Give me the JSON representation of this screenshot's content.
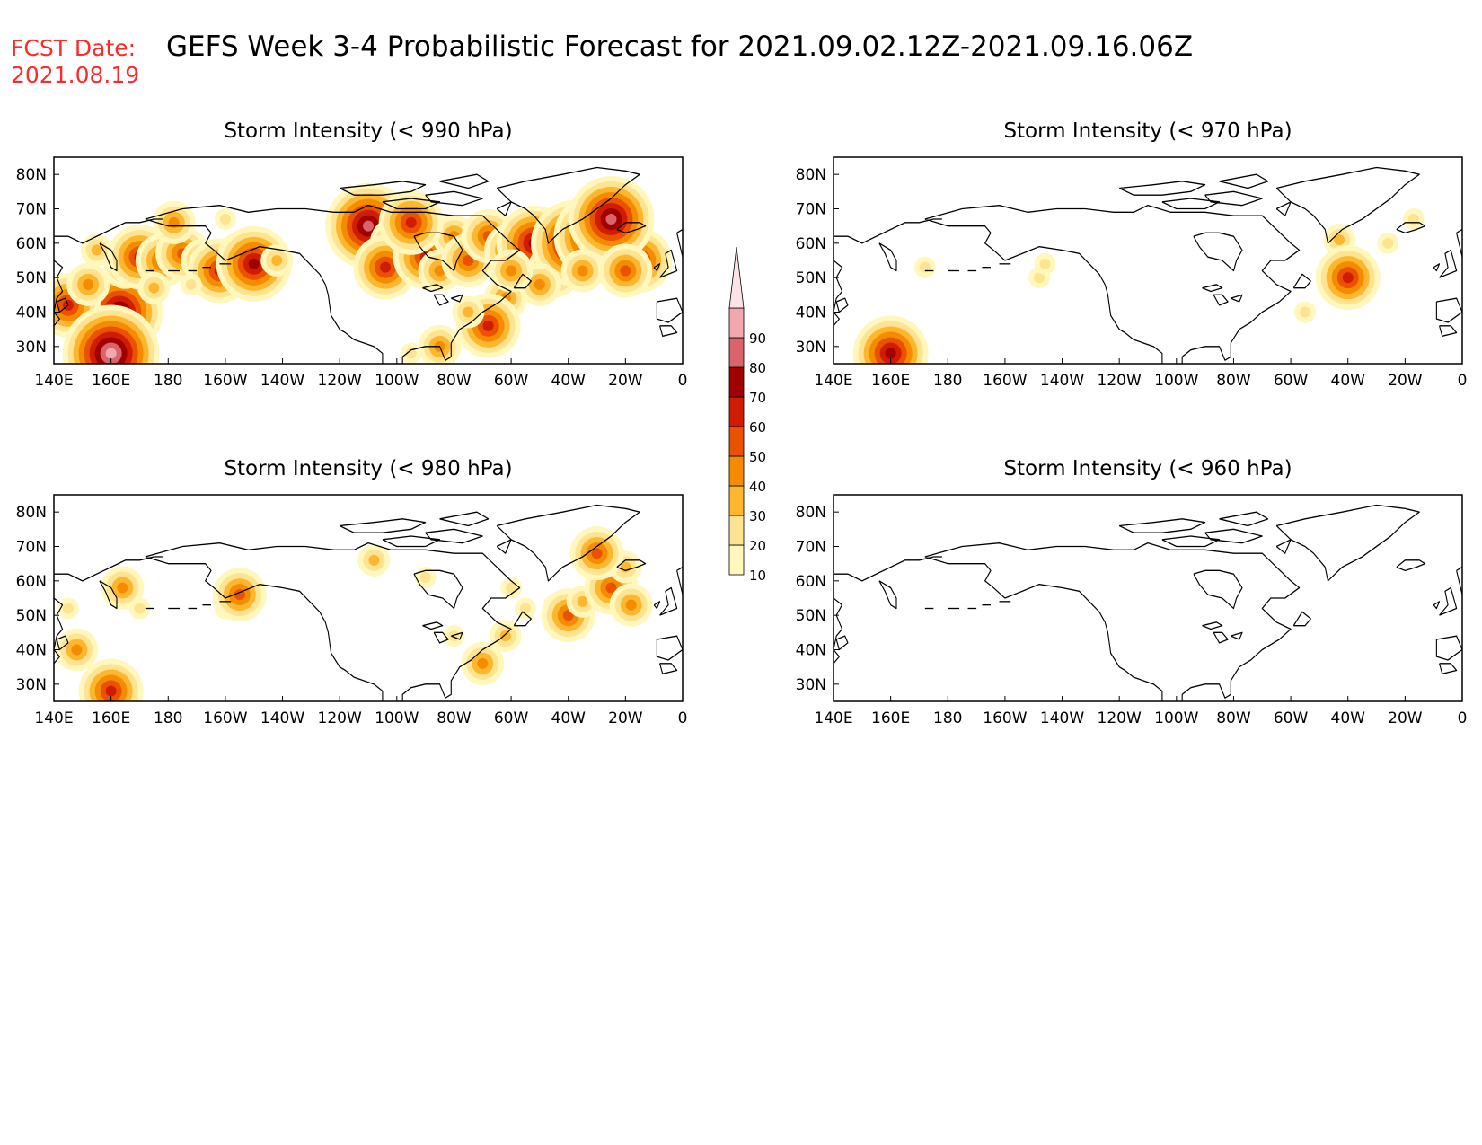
{
  "header": {
    "fcst_label": "FCST Date:",
    "fcst_date": "2021.08.19",
    "title": "GEFS Week 3-4 Probabilistic Forecast for 2021.09.02.12Z-2021.09.16.06Z"
  },
  "colors": {
    "fcst": "#ff2a2a",
    "title": "#000000",
    "border": "#000000",
    "coast": "#000000"
  },
  "x_ticks": [
    "140E",
    "160E",
    "180",
    "160W",
    "140W",
    "120W",
    "100W",
    "80W",
    "60W",
    "40W",
    "20W",
    "0"
  ],
  "y_ticks": [
    "80N",
    "70N",
    "60N",
    "50N",
    "40N",
    "30N"
  ],
  "colorbar": {
    "labels": [
      "90",
      "80",
      "70",
      "60",
      "50",
      "40",
      "30",
      "20",
      "10"
    ],
    "bins": [
      {
        "from": 10,
        "to": 20,
        "color": "#fff7bc"
      },
      {
        "from": 20,
        "to": 30,
        "color": "#fee391"
      },
      {
        "from": 30,
        "to": 40,
        "color": "#fdb72e"
      },
      {
        "from": 40,
        "to": 50,
        "color": "#f58b00"
      },
      {
        "from": 50,
        "to": 60,
        "color": "#ea5100"
      },
      {
        "from": 60,
        "to": 70,
        "color": "#d01c00"
      },
      {
        "from": 70,
        "to": 80,
        "color": "#a00000"
      },
      {
        "from": 80,
        "to": 90,
        "color": "#d9646b"
      },
      {
        "from": 90,
        "to": 100,
        "color": "#f2a7ad"
      },
      {
        "from": 100,
        "to": 110,
        "color": "#fde3e6"
      }
    ]
  },
  "panels": [
    {
      "title": "Storm Intensity (< 990 hPa)",
      "spots": [
        {
          "lon": 163,
          "lat": 40,
          "v": 80
        },
        {
          "lon": 145,
          "lat": 42,
          "v": 60
        },
        {
          "lon": 152,
          "lat": 48,
          "v": 40
        },
        {
          "lon": 160,
          "lat": 28,
          "v": 90
        },
        {
          "lon": 165,
          "lat": 53,
          "v": 40
        },
        {
          "lon": 170,
          "lat": 56,
          "v": 60
        },
        {
          "lon": 178,
          "lat": 55,
          "v": 50
        },
        {
          "lon": 185,
          "lat": 57,
          "v": 50
        },
        {
          "lon": 192,
          "lat": 55,
          "v": 40
        },
        {
          "lon": 198,
          "lat": 52,
          "v": 60
        },
        {
          "lon": 205,
          "lat": 57,
          "v": 40
        },
        {
          "lon": 210,
          "lat": 54,
          "v": 70
        },
        {
          "lon": 218,
          "lat": 55,
          "v": 30
        },
        {
          "lon": 175,
          "lat": 47,
          "v": 30
        },
        {
          "lon": 188,
          "lat": 48,
          "v": 20
        },
        {
          "lon": 200,
          "lat": 67,
          "v": 20
        },
        {
          "lon": 182,
          "lat": 66,
          "v": 40
        },
        {
          "lon": 155,
          "lat": 58,
          "v": 30
        },
        {
          "lon": 240,
          "lat": 62,
          "v": 20
        },
        {
          "lon": 250,
          "lat": 65,
          "v": 80
        },
        {
          "lon": 260,
          "lat": 60,
          "v": 50
        },
        {
          "lon": 256,
          "lat": 53,
          "v": 60
        },
        {
          "lon": 270,
          "lat": 56,
          "v": 60
        },
        {
          "lon": 280,
          "lat": 62,
          "v": 40
        },
        {
          "lon": 275,
          "lat": 52,
          "v": 40
        },
        {
          "lon": 265,
          "lat": 66,
          "v": 60
        },
        {
          "lon": 285,
          "lat": 55,
          "v": 50
        },
        {
          "lon": 292,
          "lat": 62,
          "v": 50
        },
        {
          "lon": 300,
          "lat": 58,
          "v": 50
        },
        {
          "lon": 308,
          "lat": 60,
          "v": 70
        },
        {
          "lon": 315,
          "lat": 52,
          "v": 50
        },
        {
          "lon": 322,
          "lat": 60,
          "v": 80
        },
        {
          "lon": 330,
          "lat": 62,
          "v": 80
        },
        {
          "lon": 338,
          "lat": 58,
          "v": 70
        },
        {
          "lon": 345,
          "lat": 55,
          "v": 60
        },
        {
          "lon": 335,
          "lat": 67,
          "v": 80
        },
        {
          "lon": 310,
          "lat": 48,
          "v": 40
        },
        {
          "lon": 298,
          "lat": 44,
          "v": 40
        },
        {
          "lon": 292,
          "lat": 36,
          "v": 60
        },
        {
          "lon": 285,
          "lat": 40,
          "v": 30
        },
        {
          "lon": 300,
          "lat": 52,
          "v": 40
        },
        {
          "lon": 275,
          "lat": 30,
          "v": 40
        },
        {
          "lon": 265,
          "lat": 28,
          "v": 20
        },
        {
          "lon": 325,
          "lat": 52,
          "v": 40
        },
        {
          "lon": 340,
          "lat": 52,
          "v": 50
        }
      ]
    },
    {
      "title": "Storm Intensity (< 970 hPa)",
      "spots": [
        {
          "lon": 160,
          "lat": 28,
          "v": 70
        },
        {
          "lon": 172,
          "lat": 53,
          "v": 20
        },
        {
          "lon": 212,
          "lat": 50,
          "v": 20
        },
        {
          "lon": 214,
          "lat": 54,
          "v": 20
        },
        {
          "lon": 317,
          "lat": 61,
          "v": 30
        },
        {
          "lon": 320,
          "lat": 50,
          "v": 60
        },
        {
          "lon": 334,
          "lat": 60,
          "v": 20
        },
        {
          "lon": 343,
          "lat": 67,
          "v": 20
        },
        {
          "lon": 305,
          "lat": 40,
          "v": 20
        }
      ]
    },
    {
      "title": "Storm Intensity (< 980 hPa)",
      "spots": [
        {
          "lon": 160,
          "lat": 28,
          "v": 60
        },
        {
          "lon": 148,
          "lat": 40,
          "v": 40
        },
        {
          "lon": 145,
          "lat": 52,
          "v": 20
        },
        {
          "lon": 164,
          "lat": 58,
          "v": 40
        },
        {
          "lon": 170,
          "lat": 52,
          "v": 20
        },
        {
          "lon": 200,
          "lat": 52,
          "v": 20
        },
        {
          "lon": 205,
          "lat": 56,
          "v": 50
        },
        {
          "lon": 252,
          "lat": 66,
          "v": 30
        },
        {
          "lon": 270,
          "lat": 61,
          "v": 20
        },
        {
          "lon": 290,
          "lat": 36,
          "v": 40
        },
        {
          "lon": 298,
          "lat": 44,
          "v": 30
        },
        {
          "lon": 305,
          "lat": 52,
          "v": 20
        },
        {
          "lon": 315,
          "lat": 53,
          "v": 20
        },
        {
          "lon": 320,
          "lat": 50,
          "v": 50
        },
        {
          "lon": 325,
          "lat": 54,
          "v": 30
        },
        {
          "lon": 335,
          "lat": 58,
          "v": 50
        },
        {
          "lon": 340,
          "lat": 64,
          "v": 30
        },
        {
          "lon": 342,
          "lat": 53,
          "v": 40
        },
        {
          "lon": 330,
          "lat": 68,
          "v": 50
        },
        {
          "lon": 300,
          "lat": 58,
          "v": 20
        },
        {
          "lon": 280,
          "lat": 44,
          "v": 20
        }
      ]
    },
    {
      "title": "Storm Intensity (< 960 hPa)",
      "spots": []
    }
  ]
}
